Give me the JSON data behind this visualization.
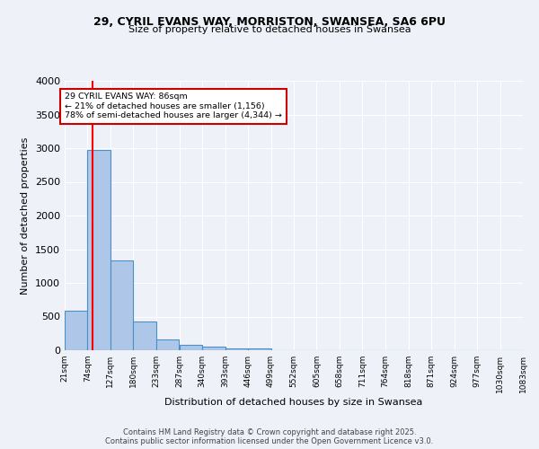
{
  "title1": "29, CYRIL EVANS WAY, MORRISTON, SWANSEA, SA6 6PU",
  "title2": "Size of property relative to detached houses in Swansea",
  "xlabel": "Distribution of detached houses by size in Swansea",
  "ylabel": "Number of detached properties",
  "bar_left_edges": [
    21,
    74,
    127,
    180,
    233,
    287,
    340,
    393,
    446,
    499,
    552,
    605,
    658,
    711,
    764,
    818,
    871,
    924,
    977,
    1030
  ],
  "bar_heights": [
    590,
    2970,
    1330,
    430,
    160,
    85,
    50,
    30,
    30,
    0,
    0,
    0,
    0,
    0,
    0,
    0,
    0,
    0,
    0,
    0
  ],
  "bin_width": 53,
  "x_tick_labels": [
    "21sqm",
    "74sqm",
    "127sqm",
    "180sqm",
    "233sqm",
    "287sqm",
    "340sqm",
    "393sqm",
    "446sqm",
    "499sqm",
    "552sqm",
    "605sqm",
    "658sqm",
    "711sqm",
    "764sqm",
    "818sqm",
    "871sqm",
    "924sqm",
    "977sqm",
    "1030sqm",
    "1083sqm"
  ],
  "bar_color": "#aec6e8",
  "bar_edge_color": "#4a90c4",
  "red_line_x": 86,
  "annotation_text": "29 CYRIL EVANS WAY: 86sqm\n← 21% of detached houses are smaller (1,156)\n78% of semi-detached houses are larger (4,344) →",
  "annotation_box_color": "#ffffff",
  "annotation_border_color": "#cc0000",
  "ylim": [
    0,
    4000
  ],
  "yticks": [
    0,
    500,
    1000,
    1500,
    2000,
    2500,
    3000,
    3500,
    4000
  ],
  "background_color": "#eef2f8",
  "grid_color": "#ffffff",
  "footer1": "Contains HM Land Registry data © Crown copyright and database right 2025.",
  "footer2": "Contains public sector information licensed under the Open Government Licence v3.0."
}
